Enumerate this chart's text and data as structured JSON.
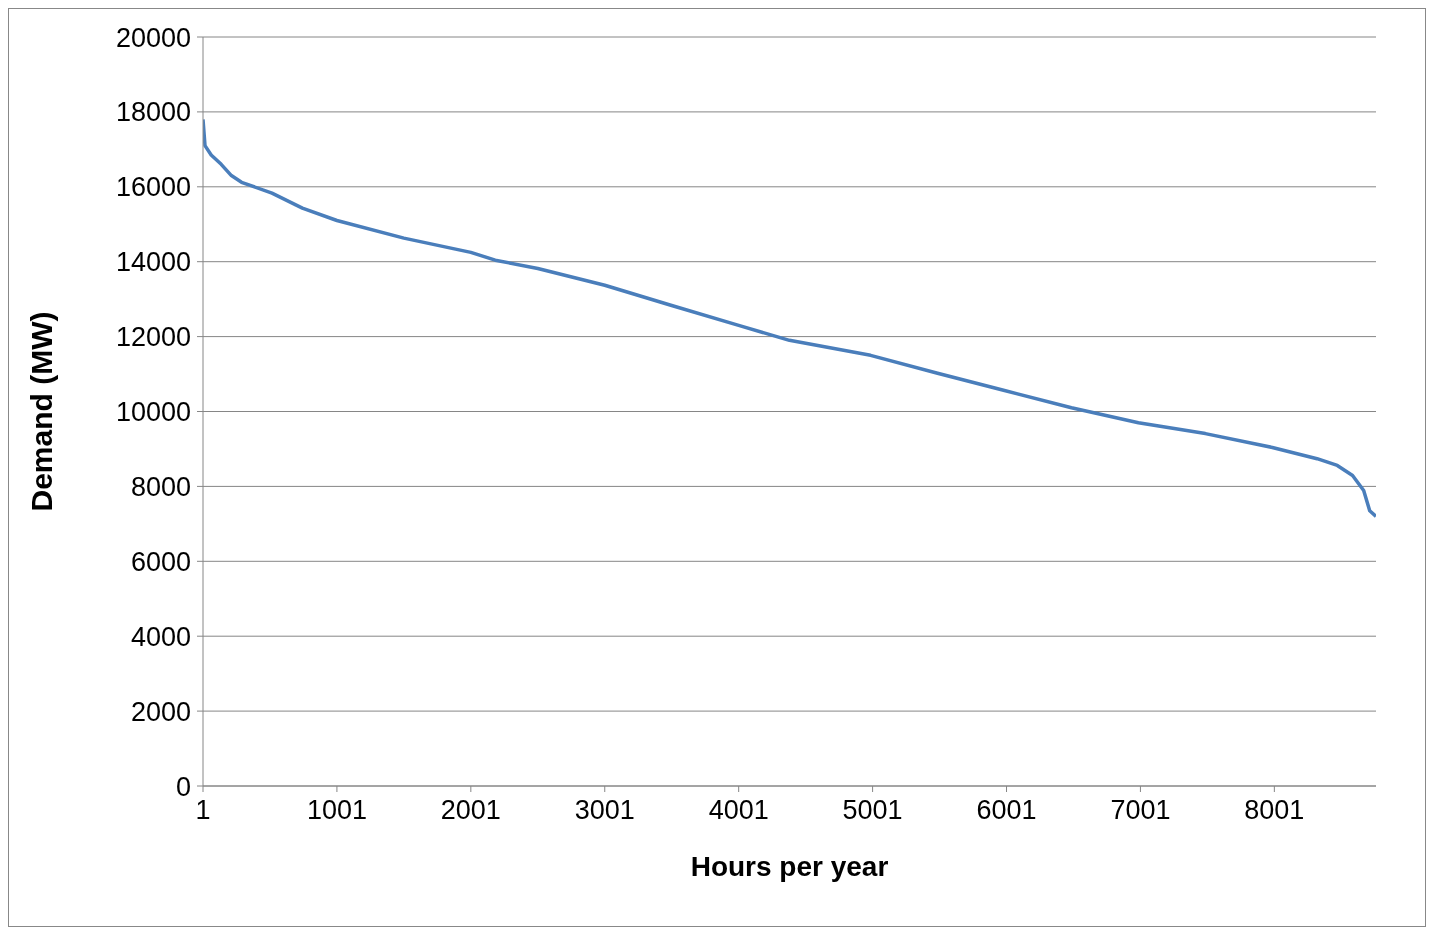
{
  "chart_data": {
    "type": "line",
    "xlabel": "Hours per year",
    "ylabel": "Demand (MW)",
    "x": [
      1,
      16,
      62,
      137,
      213,
      289,
      516,
      743,
      1001,
      1501,
      2001,
      2183,
      2501,
      3001,
      3501,
      4001,
      4380,
      4986,
      5486,
      5986,
      6486,
      6986,
      7486,
      7986,
      8320,
      8471,
      8585,
      8668,
      8713,
      8760
    ],
    "series": [
      {
        "color": "#4a7ebb",
        "values": [
          17800,
          17100,
          16850,
          16600,
          16300,
          16120,
          15830,
          15430,
          15100,
          14630,
          14250,
          14040,
          13820,
          13370,
          12830,
          12300,
          11900,
          11500,
          11020,
          10560,
          10100,
          9700,
          9410,
          9040,
          8740,
          8560,
          8290,
          7890,
          7350,
          7200
        ]
      }
    ],
    "xlim": [
      1,
      8760
    ],
    "xticks": [
      1,
      1001,
      2001,
      3001,
      4001,
      5001,
      6001,
      7001,
      8001
    ],
    "ylim": [
      0,
      20000
    ],
    "yticks": [
      0,
      2000,
      4000,
      6000,
      8000,
      10000,
      12000,
      14000,
      16000,
      18000,
      20000
    ],
    "grid": "y",
    "legend": false,
    "marker": "none",
    "line_style": "solid"
  }
}
